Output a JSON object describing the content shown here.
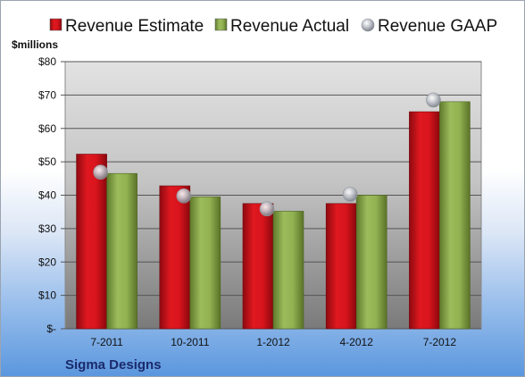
{
  "company": "Sigma Designs",
  "chart_data": {
    "type": "bar",
    "ylabel": "$millions",
    "ylim": [
      0,
      80
    ],
    "yticks": [
      0,
      10,
      20,
      30,
      40,
      50,
      60,
      70,
      80
    ],
    "ytick_labels": [
      "$-",
      "$10",
      "$20",
      "$30",
      "$40",
      "$50",
      "$60",
      "$70",
      "$80"
    ],
    "categories": [
      "7-2011",
      "10-2011",
      "1-2012",
      "4-2012",
      "7-2012"
    ],
    "series": [
      {
        "name": "Revenue Estimate",
        "kind": "bar",
        "color": "#d0111a",
        "values": [
          52.3,
          42.8,
          37.5,
          37.5,
          65.0
        ]
      },
      {
        "name": "Revenue Actual",
        "kind": "bar",
        "color": "#8fae51",
        "values": [
          46.5,
          39.5,
          35.2,
          40.0,
          68.0
        ]
      },
      {
        "name": "Revenue GAAP",
        "kind": "marker",
        "color": "#b8bcc4",
        "values": [
          46.9,
          39.8,
          35.9,
          40.3,
          68.5
        ]
      }
    ],
    "legend_position": "top",
    "grid": true
  }
}
